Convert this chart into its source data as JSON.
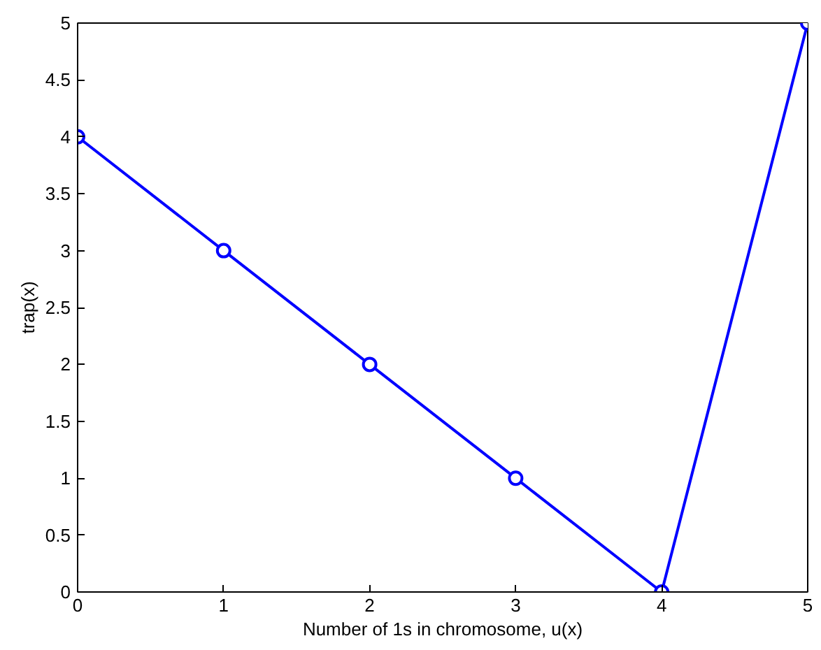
{
  "chart_data": {
    "type": "line",
    "xlabel": "Number of 1s in chromosome, u(x)",
    "ylabel": "trap(x)",
    "x": [
      0,
      1,
      2,
      3,
      4,
      5
    ],
    "series": [
      {
        "color": "#0000ff",
        "values": [
          4,
          3,
          2,
          1,
          0,
          5
        ]
      }
    ],
    "xlim": [
      0,
      5
    ],
    "ylim": [
      0,
      5
    ],
    "xticks": [
      0,
      1,
      2,
      3,
      4,
      5
    ],
    "yticks": [
      0,
      0.5,
      1,
      1.5,
      2,
      2.5,
      3,
      3.5,
      4,
      4.5,
      5
    ],
    "marker": "circle",
    "line_style": "solid",
    "grid": false
  }
}
